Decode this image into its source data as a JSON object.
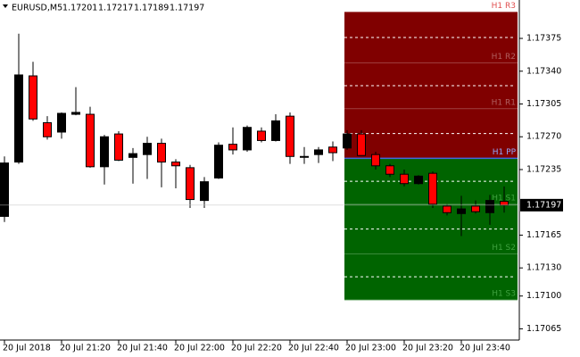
{
  "chart_data": {
    "type": "candlestick",
    "title": "EURUSD,M5",
    "categories": [
      "20 Jul 2018",
      null,
      null,
      null,
      "20 Jul 21:20",
      null,
      null,
      null,
      "20 Jul 21:40",
      null,
      null,
      null,
      "20 Jul 22:00",
      null,
      null,
      null,
      "20 Jul 22:20",
      null,
      null,
      null,
      "20 Jul 22:40",
      null,
      null,
      null,
      "20 Jul 23:00",
      null,
      null,
      null,
      "20 Jul 23:20",
      null,
      null,
      null,
      "20 Jul 23:40",
      null,
      null,
      null
    ],
    "open": [
      1.17185,
      1.17243,
      1.17335,
      1.17285,
      1.17275,
      1.17294,
      1.17294,
      1.17238,
      1.17273,
      1.17248,
      1.17251,
      1.17263,
      1.17243,
      1.17237,
      1.17202,
      1.17226,
      1.17262,
      1.17256,
      1.17276,
      1.17266,
      1.17292,
      1.17249,
      1.17251,
      1.17259,
      1.17258,
      1.17273,
      1.17251,
      1.17239,
      1.1723,
      1.1722,
      1.17231,
      1.17196,
      1.17188,
      1.17196,
      1.17189,
      1.17201
    ],
    "high": [
      1.17249,
      1.1738,
      1.1735,
      1.17292,
      1.17296,
      1.17323,
      1.17302,
      1.17272,
      1.17276,
      1.17258,
      1.1727,
      1.17268,
      1.17246,
      1.1724,
      1.17227,
      1.17264,
      1.1728,
      1.17282,
      1.1728,
      1.17294,
      1.17296,
      1.17259,
      1.17259,
      1.17265,
      1.17277,
      1.17277,
      1.17254,
      1.17241,
      1.17235,
      1.17229,
      1.17233,
      1.17198,
      1.17207,
      1.17202,
      1.17208,
      1.17217
    ],
    "low": [
      1.17179,
      1.17241,
      1.17287,
      1.17267,
      1.17268,
      1.17293,
      1.17237,
      1.17219,
      1.17244,
      1.1722,
      1.17225,
      1.17216,
      1.17215,
      1.17194,
      1.17194,
      1.17225,
      1.17251,
      1.17254,
      1.17264,
      1.17265,
      1.17241,
      1.17241,
      1.17242,
      1.17244,
      1.17256,
      1.1725,
      1.17235,
      1.17227,
      1.17217,
      1.17219,
      1.17194,
      1.17186,
      1.17164,
      1.17188,
      1.17176,
      1.17189
    ],
    "close": [
      1.17242,
      1.17336,
      1.17289,
      1.1727,
      1.17295,
      1.17296,
      1.17238,
      1.1727,
      1.17245,
      1.17252,
      1.17263,
      1.17243,
      1.17239,
      1.17203,
      1.17222,
      1.17261,
      1.17256,
      1.1728,
      1.17266,
      1.17287,
      1.17249,
      1.17249,
      1.17256,
      1.17253,
      1.17273,
      1.1725,
      1.17239,
      1.1723,
      1.1722,
      1.17228,
      1.17198,
      1.17189,
      1.17193,
      1.1719,
      1.17202,
      1.17197
    ],
    "ylim": [
      1.17053,
      1.17416
    ],
    "yticks": [
      1.17375,
      {
        "value": 1.1734,
        "label": "1.17340"
      },
      1.17305,
      {
        "value": 1.1727,
        "label": "1.17270"
      },
      1.17235,
      1.17165,
      {
        "value": 1.1713,
        "label": "1.17130"
      },
      {
        "value": 1.171,
        "label": "1.17100"
      },
      1.17065
    ],
    "up_color": "#000000",
    "down_color": "#ff0000",
    "resistance_color": "#800000",
    "support_color": "#006400",
    "pivot_color": "#4169e1",
    "pivots": [
      {
        "name": "H1 R3",
        "value": 1.17403
      },
      {
        "name": "H1 R2",
        "value": 1.17349
      },
      {
        "name": "H1 R1",
        "value": 1.173
      },
      {
        "name": "H1 PP",
        "value": 1.17247
      },
      {
        "name": "H1 S1",
        "value": 1.17198
      },
      {
        "name": "H1 S2",
        "value": 1.17145
      },
      {
        "name": "H1 S3",
        "value": 1.17096
      }
    ]
  }
}
